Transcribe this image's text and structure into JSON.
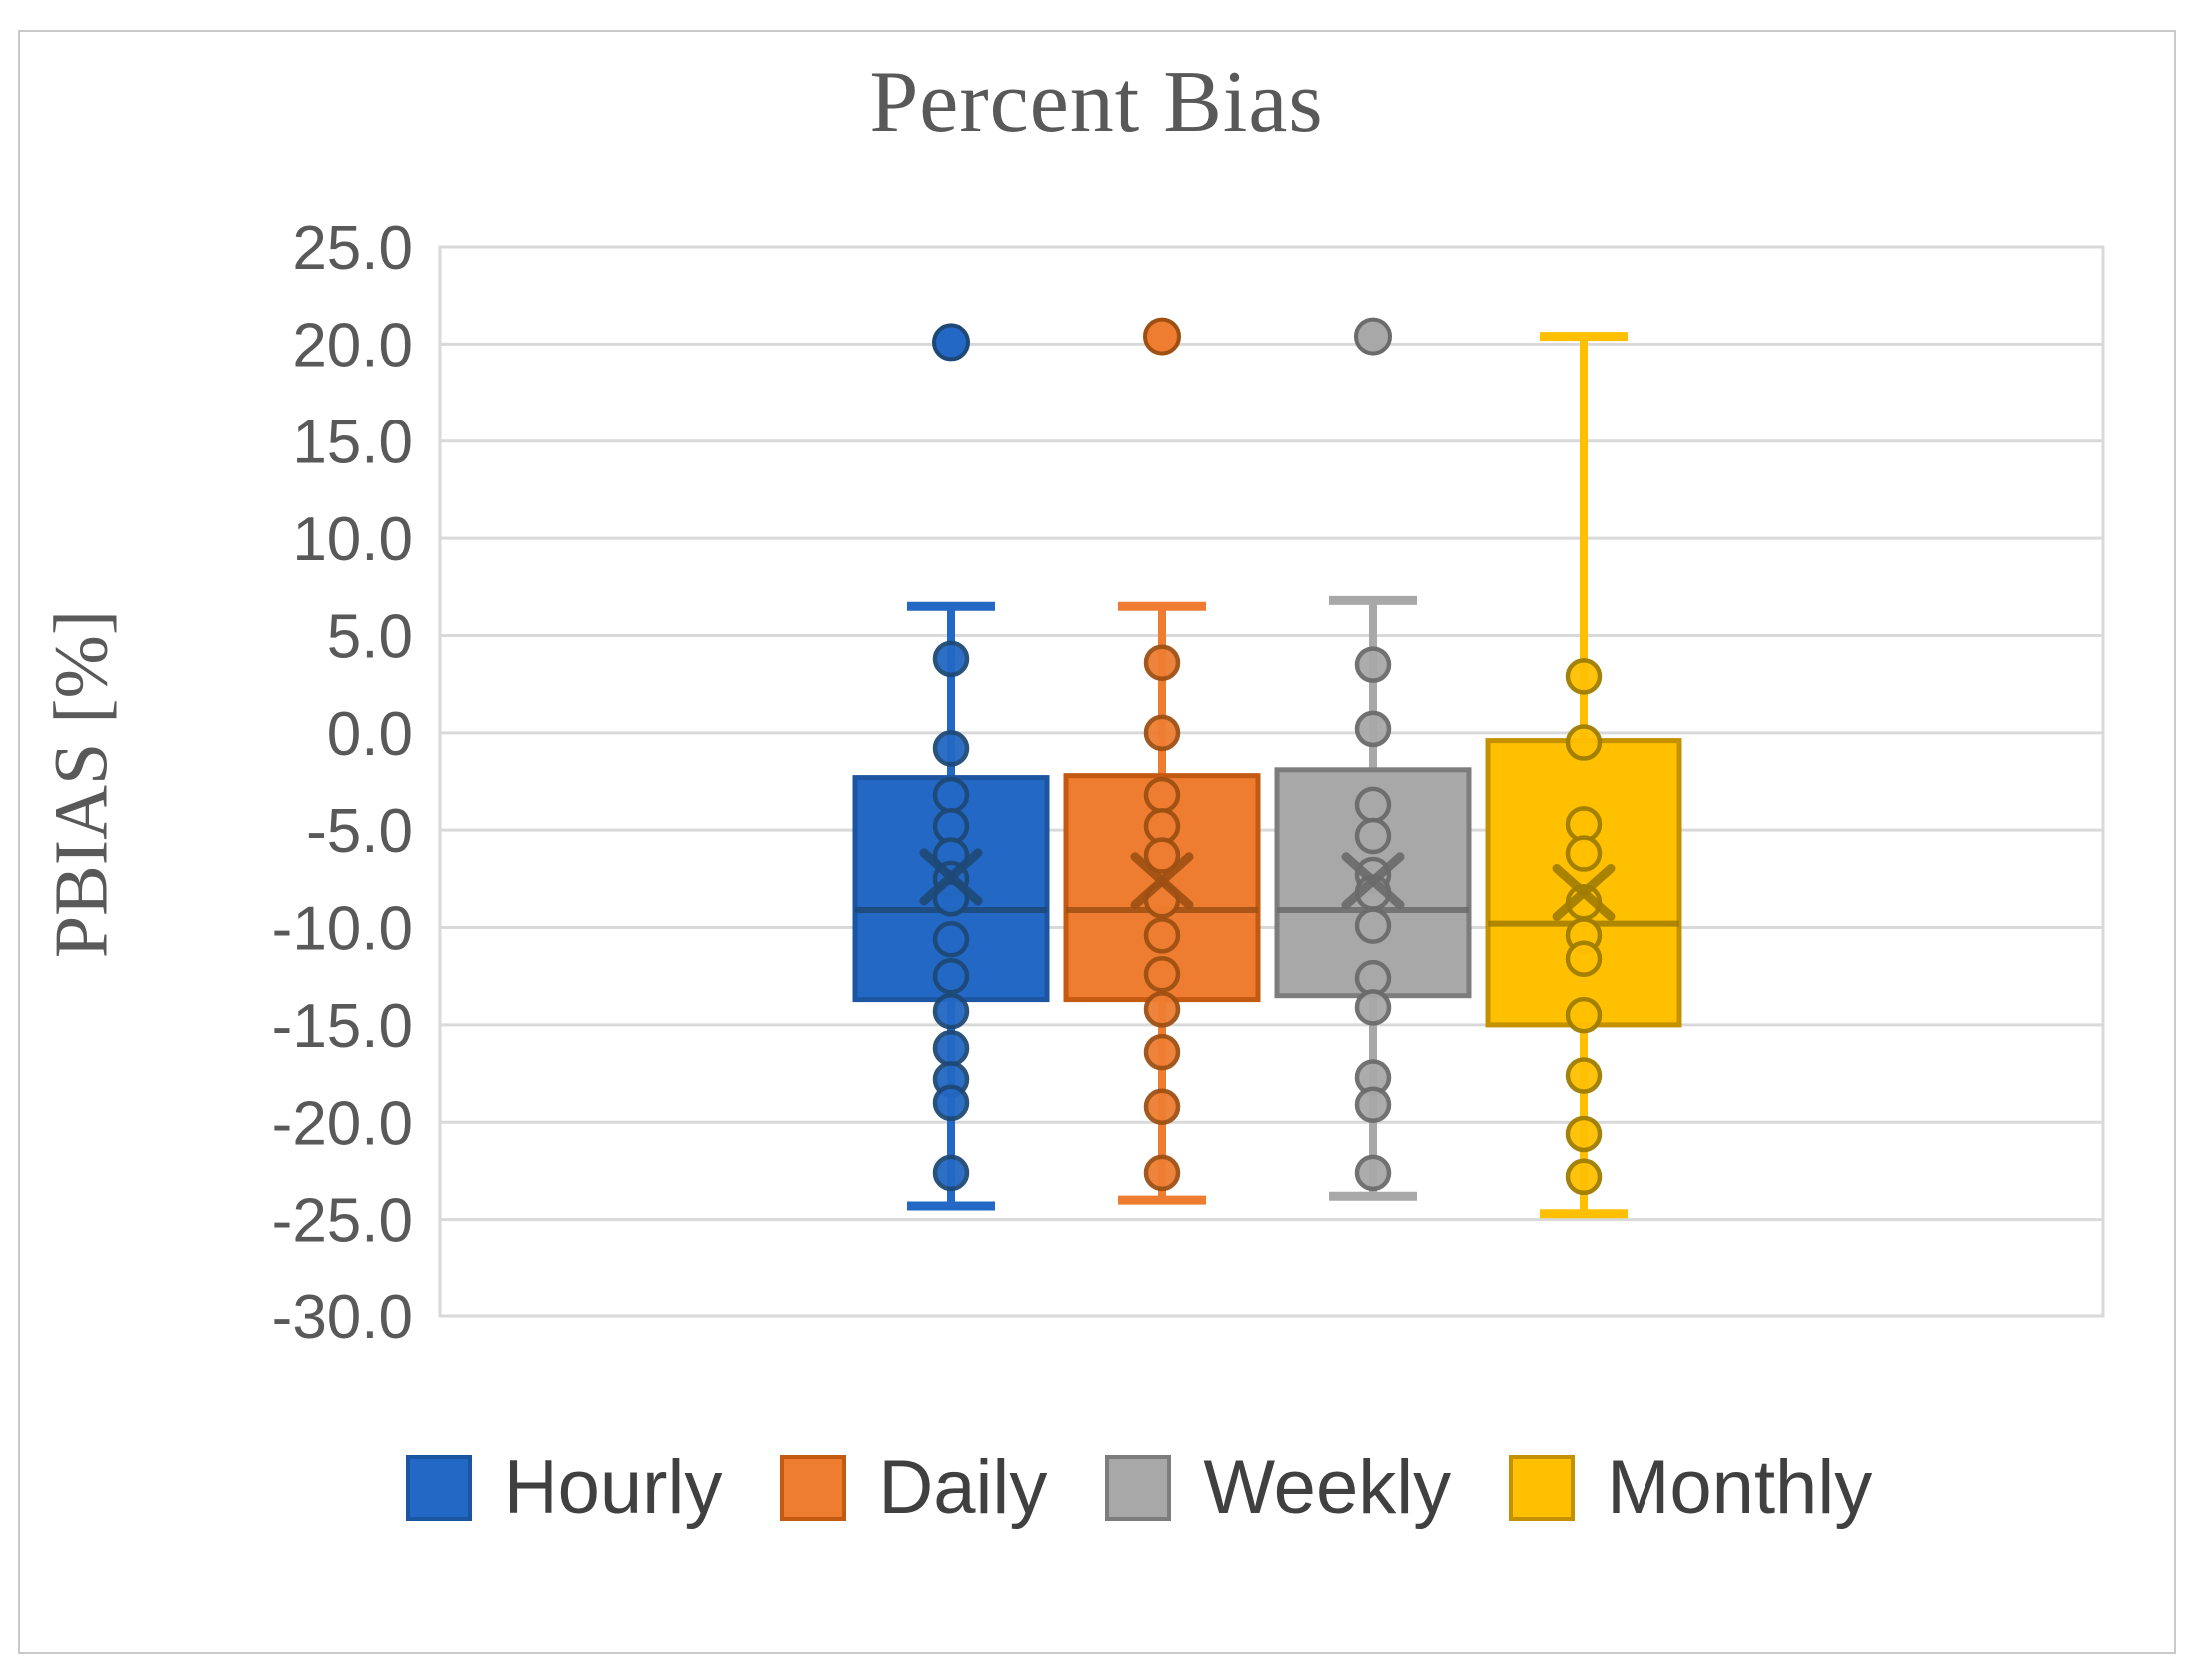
{
  "chart_data": {
    "type": "boxplot",
    "title": "Percent Bias",
    "ylabel": "PBIAS [%]",
    "ylim": [
      -30,
      25
    ],
    "ytick_step": 5,
    "yticks": [
      "25.0",
      "20.0",
      "15.0",
      "10.0",
      "5.0",
      "0.0",
      "-5.0",
      "-10.0",
      "-15.0",
      "-20.0",
      "-25.0",
      "-30.0"
    ],
    "grid": "horizontal",
    "legend_position": "bottom",
    "grid_color": "#d9d9d9",
    "text_color": "#595959",
    "legend_text_color": "#404040",
    "frame_color": "#c9c9c9",
    "series": [
      {
        "name": "Hourly",
        "fill": "#2368c4",
        "border": "#1c55a0",
        "dark": "#1e4976",
        "box": {
          "whisker_low": -24.3,
          "q1": -13.7,
          "median": -9.1,
          "q3": -2.3,
          "whisker_high": 6.5,
          "mean": -7.4
        },
        "outliers": [
          20.1
        ],
        "points": [
          3.8,
          -0.8,
          -3.2,
          -4.8,
          -6.3,
          -7.5,
          -8.5,
          -10.6,
          -12.5,
          -14.3,
          -16.2,
          -17.8,
          -19.0,
          -22.6
        ]
      },
      {
        "name": "Daily",
        "fill": "#ee7d31",
        "border": "#c45911",
        "dark": "#9e5012",
        "box": {
          "whisker_low": -24.0,
          "q1": -13.7,
          "median": -9.1,
          "q3": -2.2,
          "whisker_high": 6.5,
          "mean": -7.6
        },
        "outliers": [
          20.4
        ],
        "points": [
          3.6,
          0.0,
          -3.2,
          -4.8,
          -6.3,
          -8.6,
          -10.4,
          -12.4,
          -14.2,
          -16.4,
          -19.2,
          -22.6
        ]
      },
      {
        "name": "Weekly",
        "fill": "#a8a8a8",
        "border": "#7d7d7d",
        "dark": "#6b6b6b",
        "box": {
          "whisker_low": -23.8,
          "q1": -13.5,
          "median": -9.1,
          "q3": -1.9,
          "whisker_high": 6.8,
          "mean": -7.6
        },
        "outliers": [
          20.4
        ],
        "points": [
          3.5,
          0.2,
          -3.7,
          -5.3,
          -7.3,
          -8.2,
          -9.9,
          -12.6,
          -14.1,
          -17.7,
          -19.1,
          -22.6
        ]
      },
      {
        "name": "Monthly",
        "fill": "#ffc002",
        "border": "#c49100",
        "dark": "#a07d00",
        "box": {
          "whisker_low": -24.7,
          "q1": -15.0,
          "median": -9.8,
          "q3": -0.4,
          "whisker_high": 20.4,
          "mean": -8.2
        },
        "outliers": [],
        "points": [
          2.9,
          -0.5,
          -4.7,
          -6.2,
          -8.7,
          -10.4,
          -11.6,
          -14.5,
          -17.6,
          -20.6,
          -22.8
        ]
      }
    ]
  }
}
